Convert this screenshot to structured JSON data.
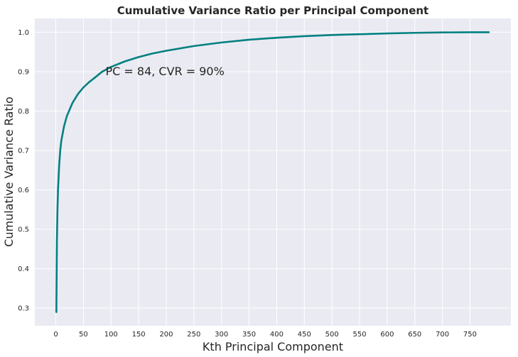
{
  "chart_data": {
    "type": "line",
    "title": "Cumulative Variance Ratio per Principal Component",
    "xlabel": "Kth Principal Component",
    "ylabel": "Cumulative Variance Ratio",
    "xlim": [
      -38,
      824
    ],
    "ylim": [
      0.255,
      1.035
    ],
    "xticks": [
      0,
      50,
      100,
      150,
      200,
      250,
      300,
      350,
      400,
      450,
      500,
      550,
      600,
      650,
      700,
      750
    ],
    "yticks": [
      0.3,
      0.4,
      0.5,
      0.6,
      0.7,
      0.8,
      0.9,
      1.0
    ],
    "xtick_labels": [
      "0",
      "50",
      "100",
      "150",
      "200",
      "250",
      "300",
      "350",
      "400",
      "450",
      "500",
      "550",
      "600",
      "650",
      "700",
      "750"
    ],
    "ytick_labels": [
      "0.3",
      "0.4",
      "0.5",
      "0.6",
      "0.7",
      "0.8",
      "0.9",
      "1.0"
    ],
    "grid": true,
    "series": [
      {
        "color": "#008080",
        "x": [
          1,
          2,
          3,
          4,
          6,
          8,
          10,
          15,
          20,
          30,
          40,
          50,
          60,
          70,
          84,
          100,
          125,
          150,
          175,
          200,
          250,
          300,
          350,
          400,
          450,
          500,
          550,
          600,
          650,
          700,
          750,
          784
        ],
        "values": [
          0.29,
          0.47,
          0.55,
          0.6,
          0.66,
          0.7,
          0.725,
          0.762,
          0.787,
          0.82,
          0.843,
          0.86,
          0.873,
          0.884,
          0.9,
          0.912,
          0.926,
          0.937,
          0.946,
          0.953,
          0.965,
          0.974,
          0.981,
          0.986,
          0.99,
          0.993,
          0.995,
          0.997,
          0.9985,
          0.9995,
          0.9999,
          1.0
        ]
      }
    ],
    "annotations": [
      {
        "text": "PC = 84, CVR = 90%",
        "x": 90,
        "y": 0.9
      }
    ]
  }
}
